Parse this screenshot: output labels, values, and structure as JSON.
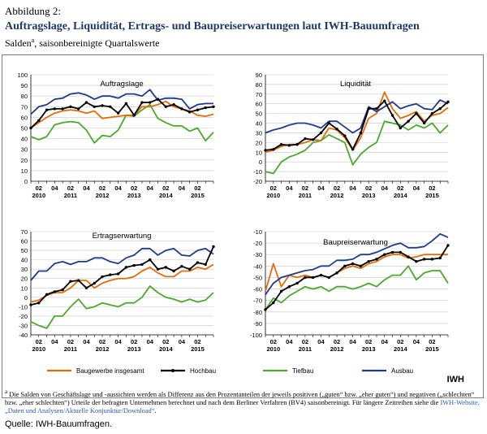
{
  "header": {
    "label": "Abbildung 2:",
    "title": "Auftragslage, Liquidität, Ertrags- und Baupreiserwartungen laut IWH-Bauumfragen",
    "subtitle": "Salden",
    "subtitle_note": "a",
    "subtitle_rest": ", saisonbereinigte Quartalswerte"
  },
  "brand": "IWH",
  "footnote": {
    "mark": "a",
    "text": " Die Salden von Geschäftslage und -aussichten werden als Differenz aus den Prozentanteilen der jeweils positiven („guten“ bzw. „eher guten“) und negativen („schlechten“ bzw. „eher schlechten“) Urteile der befragten Unternehmen berechnet und nach dem Berliner Verfahren (BV4) saisonbereinigt. Für längere Zeitreihen siehe die ",
    "link": "IWH-Website, „Daten und Analysen/Aktuelle Konjunktur/Download“",
    "end": "."
  },
  "source": "Quelle:   IWH-Bauumfragen.",
  "legend": [
    {
      "name": "Baugewerbe insgesamt",
      "color": "#e36c0a"
    },
    {
      "name": "Hochbau",
      "color": "#000000"
    },
    {
      "name": "Tiefbau",
      "color": "#4ea72e"
    },
    {
      "name": "Ausbau",
      "color": "#1f3c88"
    }
  ],
  "chart_data": [
    {
      "type": "line",
      "title": "Auftragslage",
      "ylim": [
        0,
        100
      ],
      "yticks": [
        0,
        10,
        20,
        30,
        40,
        50,
        60,
        70,
        80,
        90,
        100
      ],
      "x_quarter_labels": [
        "02",
        "04",
        "02",
        "04",
        "02",
        "04",
        "02",
        "04",
        "02",
        "04",
        "02"
      ],
      "x_year_labels": [
        "2010",
        "2011",
        "2012",
        "2013",
        "2014",
        "2015"
      ],
      "series": [
        {
          "name": "Baugewerbe insgesamt",
          "color": "#e36c0a",
          "values": [
            50,
            55,
            60,
            64,
            66,
            67,
            66,
            64,
            66,
            59,
            60,
            61,
            62,
            62,
            70,
            70,
            72,
            75,
            70,
            68,
            66,
            62,
            61,
            63
          ]
        },
        {
          "name": "Hochbau",
          "color": "#000000",
          "values": [
            50,
            57,
            67,
            68,
            68,
            70,
            68,
            74,
            70,
            71,
            70,
            64,
            73,
            62,
            74,
            74,
            77,
            70,
            72,
            68,
            65,
            67,
            69,
            70
          ]
        },
        {
          "name": "Tiefbau",
          "color": "#4ea72e",
          "values": [
            42,
            39,
            42,
            53,
            55,
            56,
            55,
            48,
            36,
            43,
            42,
            48,
            62,
            61,
            67,
            72,
            59,
            55,
            52,
            52,
            47,
            50,
            38,
            46
          ]
        },
        {
          "name": "Ausbau",
          "color": "#1f3c88",
          "values": [
            63,
            70,
            72,
            77,
            78,
            82,
            83,
            81,
            77,
            80,
            80,
            78,
            82,
            82,
            80,
            86,
            76,
            78,
            78,
            77,
            68,
            72,
            73,
            73
          ]
        }
      ]
    },
    {
      "type": "line",
      "title": "Liquidität",
      "ylim": [
        -20,
        90
      ],
      "yticks": [
        -20,
        -10,
        0,
        10,
        20,
        30,
        40,
        50,
        60,
        70,
        80,
        90
      ],
      "x_quarter_labels": [
        "02",
        "04",
        "02",
        "04",
        "02",
        "04",
        "02",
        "04",
        "02",
        "04",
        "02"
      ],
      "x_year_labels": [
        "2010",
        "2011",
        "2012",
        "2013",
        "2014",
        "2015"
      ],
      "series": [
        {
          "name": "Baugewerbe insgesamt",
          "color": "#e36c0a",
          "values": [
            10,
            12,
            16,
            18,
            18,
            20,
            23,
            22,
            35,
            33,
            25,
            12,
            25,
            45,
            50,
            72,
            55,
            45,
            48,
            52,
            42,
            48,
            50,
            56
          ]
        },
        {
          "name": "Hochbau",
          "color": "#000000",
          "values": [
            12,
            13,
            18,
            17,
            18,
            24,
            23,
            30,
            40,
            34,
            27,
            13,
            30,
            55,
            55,
            63,
            48,
            35,
            42,
            50,
            40,
            50,
            55,
            62
          ]
        },
        {
          "name": "Tiefbau",
          "color": "#4ea72e",
          "values": [
            -10,
            -12,
            0,
            5,
            8,
            12,
            20,
            22,
            28,
            24,
            20,
            -3,
            8,
            15,
            20,
            42,
            40,
            38,
            33,
            38,
            35,
            40,
            30,
            38
          ]
        },
        {
          "name": "Ausbau",
          "color": "#1f3c88",
          "values": [
            30,
            33,
            35,
            38,
            40,
            40,
            38,
            35,
            42,
            42,
            36,
            30,
            35,
            57,
            52,
            57,
            62,
            55,
            58,
            60,
            55,
            54,
            64,
            60
          ]
        }
      ]
    },
    {
      "type": "line",
      "title": "Ertragserwartung",
      "ylim": [
        -40,
        70
      ],
      "yticks": [
        -40,
        -30,
        -20,
        -10,
        0,
        10,
        20,
        30,
        40,
        50,
        60,
        70
      ],
      "x_quarter_labels": [
        "02",
        "04",
        "02",
        "04",
        "02",
        "04",
        "02",
        "04",
        "02",
        "04",
        "02"
      ],
      "x_year_labels": [
        "2010",
        "2011",
        "2012",
        "2013",
        "2014",
        "2015"
      ],
      "series": [
        {
          "name": "Baugewerbe insgesamt",
          "color": "#e36c0a",
          "values": [
            -5,
            -3,
            2,
            5,
            5,
            10,
            18,
            18,
            10,
            15,
            18,
            20,
            20,
            22,
            28,
            32,
            26,
            22,
            22,
            28,
            28,
            32,
            30,
            35
          ]
        },
        {
          "name": "Hochbau",
          "color": "#000000",
          "values": [
            -8,
            -6,
            3,
            6,
            8,
            17,
            18,
            10,
            15,
            22,
            24,
            25,
            32,
            34,
            35,
            40,
            30,
            32,
            28,
            33,
            30,
            37,
            35,
            54
          ]
        },
        {
          "name": "Tiefbau",
          "color": "#4ea72e",
          "values": [
            -26,
            -30,
            -33,
            -20,
            -20,
            -10,
            -2,
            -12,
            -10,
            -6,
            -8,
            -10,
            -6,
            -6,
            0,
            12,
            5,
            0,
            -2,
            -5,
            -2,
            -5,
            -3,
            5
          ]
        },
        {
          "name": "Ausbau",
          "color": "#1f3c88",
          "values": [
            18,
            28,
            28,
            36,
            38,
            35,
            38,
            38,
            42,
            42,
            38,
            36,
            42,
            45,
            52,
            52,
            45,
            50,
            52,
            45,
            44,
            50,
            52,
            46
          ]
        }
      ]
    },
    {
      "type": "line",
      "title": "Baupreiserwartung",
      "ylim": [
        -100,
        -10
      ],
      "yticks": [
        -100,
        -90,
        -80,
        -70,
        -60,
        -50,
        -40,
        -30,
        -20,
        -10
      ],
      "x_quarter_labels": [
        "02",
        "04",
        "02",
        "04",
        "02",
        "04",
        "02",
        "04",
        "02",
        "04",
        "02"
      ],
      "x_year_labels": [
        "2010",
        "2011",
        "2012",
        "2013",
        "2014",
        "2015"
      ],
      "series": [
        {
          "name": "Baugewerbe insgesamt",
          "color": "#e36c0a",
          "values": [
            -62,
            -38,
            -58,
            -48,
            -50,
            -48,
            -50,
            -48,
            -50,
            -46,
            -42,
            -40,
            -42,
            -38,
            -36,
            -32,
            -30,
            -30,
            -33,
            -32,
            -30,
            -30,
            -30,
            -30
          ]
        },
        {
          "name": "Hochbau",
          "color": "#000000",
          "values": [
            -78,
            -72,
            -62,
            -58,
            -55,
            -50,
            -50,
            -48,
            -50,
            -46,
            -40,
            -38,
            -40,
            -36,
            -34,
            -30,
            -28,
            -28,
            -32,
            -36,
            -34,
            -34,
            -33,
            -22
          ]
        },
        {
          "name": "Tiefbau",
          "color": "#4ea72e",
          "values": [
            -78,
            -68,
            -72,
            -66,
            -62,
            -58,
            -60,
            -58,
            -62,
            -58,
            -58,
            -60,
            -58,
            -55,
            -58,
            -52,
            -48,
            -48,
            -40,
            -52,
            -46,
            -44,
            -44,
            -55
          ]
        },
        {
          "name": "Ausbau",
          "color": "#1f3c88",
          "values": [
            -65,
            -55,
            -50,
            -48,
            -46,
            -44,
            -43,
            -40,
            -40,
            -35,
            -35,
            -34,
            -30,
            -30,
            -28,
            -25,
            -22,
            -20,
            -24,
            -24,
            -23,
            -18,
            -12,
            -15
          ]
        }
      ]
    }
  ]
}
